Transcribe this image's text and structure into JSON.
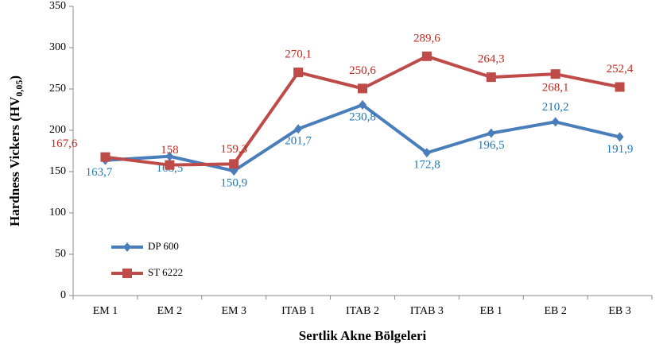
{
  "chart_data": {
    "type": "line",
    "xlabel": "Sertlik Akne Bölgeleri",
    "ylabel": "Hardness  Vickers (HV",
    "ylabel_sub": "0,05",
    "ylabel_end": ")",
    "categories": [
      "EM 1",
      "EM 2",
      "EM 3",
      "ITAB 1",
      "ITAB 2",
      "ITAB 3",
      "EB 1",
      "EB 2",
      "EB 3"
    ],
    "series": [
      {
        "name": "DP 600",
        "color": "#4a7ebb",
        "label_color": "#1f78b4",
        "marker": "diamond",
        "values": [
          163.7,
          168.5,
          150.9,
          201.7,
          230.8,
          172.8,
          196.5,
          210.2,
          191.9
        ],
        "value_labels": [
          "163,7",
          "168,5",
          "150,9",
          "201,7",
          "230,8",
          "172,8",
          "196,5",
          "210,2",
          "191,9"
        ]
      },
      {
        "name": "ST 6222",
        "color": "#be4b48",
        "label_color": "#c0281e",
        "marker": "square",
        "values": [
          167.6,
          158,
          159.3,
          270.1,
          250.6,
          289.6,
          264.3,
          268.1,
          252.4
        ],
        "value_labels": [
          "167,6",
          "158",
          "159,3",
          "270,1",
          "250,6",
          "289,6",
          "264,3",
          "268,1",
          "252,4"
        ]
      }
    ],
    "ylim": [
      0,
      350
    ],
    "yticks": [
      0,
      50,
      100,
      150,
      200,
      250,
      300,
      350
    ],
    "grid": false,
    "legend": "lower left"
  }
}
